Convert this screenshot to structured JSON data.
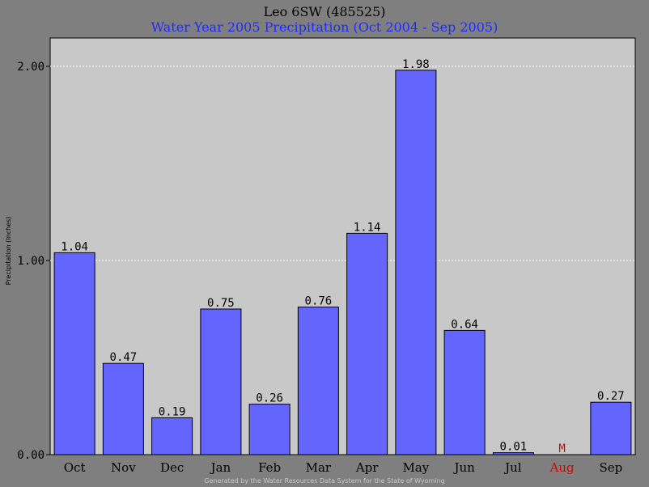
{
  "header": {
    "title": "Leo 6SW (485525)",
    "subtitle": "Water Year 2005 Precipitation (Oct 2004 - Sep 2005)"
  },
  "footer": {
    "text": "Generated by the Water Resources Data System for the State of Wyoming"
  },
  "colors": {
    "bar": "#6464ff",
    "plot_bg": "#c8c8c8",
    "page_bg": "#7f7f7f",
    "missing": "#e00000",
    "title": "#000000",
    "subtitle": "#1f2bff"
  },
  "chart_data": {
    "type": "bar",
    "title": "Leo 6SW (485525)",
    "subtitle": "Water Year 2005 Precipitation (Oct 2004 - Sep 2005)",
    "xlabel": "",
    "ylabel": "Precipitation (Inches)",
    "ylim": [
      0,
      2.0
    ],
    "yticks": [
      0.0,
      1.0,
      2.0
    ],
    "ytick_labels": [
      "0.00",
      "1.00",
      "2.00"
    ],
    "grid": true,
    "categories": [
      "Oct",
      "Nov",
      "Dec",
      "Jan",
      "Feb",
      "Mar",
      "Apr",
      "May",
      "Jun",
      "Jul",
      "Aug",
      "Sep"
    ],
    "values": [
      1.04,
      0.47,
      0.19,
      0.75,
      0.26,
      0.76,
      1.14,
      1.98,
      0.64,
      0.01,
      null,
      0.27
    ],
    "labels": [
      "1.04",
      "0.47",
      "0.19",
      "0.75",
      "0.26",
      "0.76",
      "1.14",
      "1.98",
      "0.64",
      "0.01",
      "M",
      "0.27"
    ],
    "missing": [
      false,
      false,
      false,
      false,
      false,
      false,
      false,
      false,
      false,
      false,
      true,
      false
    ]
  }
}
